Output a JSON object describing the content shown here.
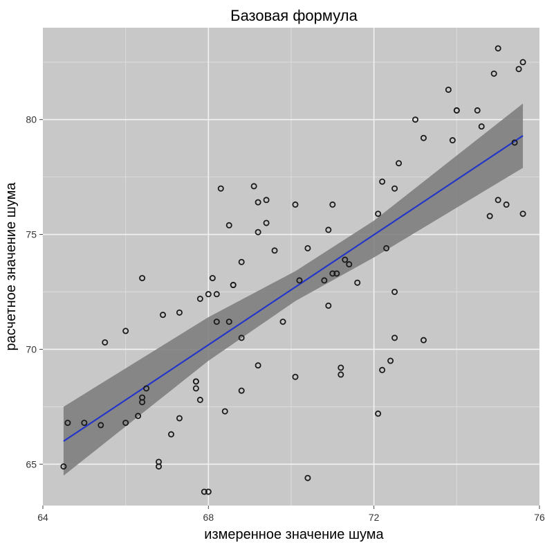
{
  "chart_data": {
    "type": "scatter",
    "title": "Базовая формула",
    "xlabel": "измеренное значение шума",
    "ylabel": "расчетное значение шума",
    "xlim": [
      64,
      76
    ],
    "ylim": [
      63.2,
      84.0
    ],
    "xticks": [
      64,
      68,
      72,
      76
    ],
    "yticks": [
      65,
      70,
      75,
      80
    ],
    "grid": true,
    "colors": {
      "panel": "#c8c8c8",
      "grid_major": "#f2f2f2",
      "grid_minor": "#dcdcdc",
      "points": "#1a1a1a",
      "fit_line": "#2436c8",
      "confidence_band": "#7a7a7a"
    },
    "points": [
      {
        "x": 64.5,
        "y": 64.9
      },
      {
        "x": 64.6,
        "y": 66.8
      },
      {
        "x": 65.0,
        "y": 66.8
      },
      {
        "x": 65.4,
        "y": 66.7
      },
      {
        "x": 65.5,
        "y": 70.3
      },
      {
        "x": 66.0,
        "y": 70.8
      },
      {
        "x": 66.0,
        "y": 66.8
      },
      {
        "x": 66.3,
        "y": 67.1
      },
      {
        "x": 66.4,
        "y": 67.7
      },
      {
        "x": 66.4,
        "y": 67.9
      },
      {
        "x": 66.5,
        "y": 68.3
      },
      {
        "x": 66.4,
        "y": 73.1
      },
      {
        "x": 66.8,
        "y": 65.1
      },
      {
        "x": 66.8,
        "y": 64.9
      },
      {
        "x": 66.9,
        "y": 71.5
      },
      {
        "x": 67.1,
        "y": 66.3
      },
      {
        "x": 67.3,
        "y": 71.6
      },
      {
        "x": 67.3,
        "y": 67.0
      },
      {
        "x": 67.7,
        "y": 68.6
      },
      {
        "x": 67.7,
        "y": 68.3
      },
      {
        "x": 67.7,
        "y": 68.6
      },
      {
        "x": 67.8,
        "y": 67.8
      },
      {
        "x": 67.8,
        "y": 72.2
      },
      {
        "x": 67.9,
        "y": 63.8
      },
      {
        "x": 68.0,
        "y": 63.8
      },
      {
        "x": 68.0,
        "y": 72.4
      },
      {
        "x": 68.1,
        "y": 73.1
      },
      {
        "x": 68.2,
        "y": 71.2
      },
      {
        "x": 68.2,
        "y": 72.4
      },
      {
        "x": 68.3,
        "y": 77.0
      },
      {
        "x": 68.4,
        "y": 67.3
      },
      {
        "x": 68.5,
        "y": 75.4
      },
      {
        "x": 68.5,
        "y": 71.2
      },
      {
        "x": 68.6,
        "y": 72.8
      },
      {
        "x": 68.6,
        "y": 72.8
      },
      {
        "x": 68.8,
        "y": 70.5
      },
      {
        "x": 68.8,
        "y": 73.8
      },
      {
        "x": 68.8,
        "y": 68.2
      },
      {
        "x": 69.1,
        "y": 77.1
      },
      {
        "x": 69.2,
        "y": 76.4
      },
      {
        "x": 69.2,
        "y": 75.1
      },
      {
        "x": 69.2,
        "y": 69.3
      },
      {
        "x": 69.4,
        "y": 76.5
      },
      {
        "x": 69.4,
        "y": 75.5
      },
      {
        "x": 69.6,
        "y": 74.3
      },
      {
        "x": 69.8,
        "y": 71.2
      },
      {
        "x": 70.1,
        "y": 76.3
      },
      {
        "x": 70.1,
        "y": 68.8
      },
      {
        "x": 70.2,
        "y": 73.0
      },
      {
        "x": 70.4,
        "y": 74.4
      },
      {
        "x": 70.4,
        "y": 64.4
      },
      {
        "x": 70.8,
        "y": 73.0
      },
      {
        "x": 70.9,
        "y": 75.2
      },
      {
        "x": 70.9,
        "y": 71.9
      },
      {
        "x": 71.0,
        "y": 76.3
      },
      {
        "x": 71.0,
        "y": 73.3
      },
      {
        "x": 71.1,
        "y": 73.3
      },
      {
        "x": 71.2,
        "y": 69.2
      },
      {
        "x": 71.2,
        "y": 68.9
      },
      {
        "x": 71.3,
        "y": 73.9
      },
      {
        "x": 71.4,
        "y": 73.7
      },
      {
        "x": 71.6,
        "y": 72.9
      },
      {
        "x": 72.1,
        "y": 75.9
      },
      {
        "x": 72.1,
        "y": 67.2
      },
      {
        "x": 72.2,
        "y": 77.3
      },
      {
        "x": 72.2,
        "y": 69.1
      },
      {
        "x": 72.3,
        "y": 74.4
      },
      {
        "x": 72.4,
        "y": 69.5
      },
      {
        "x": 72.5,
        "y": 77.0
      },
      {
        "x": 72.5,
        "y": 72.5
      },
      {
        "x": 72.5,
        "y": 70.5
      },
      {
        "x": 72.6,
        "y": 78.1
      },
      {
        "x": 73.0,
        "y": 80.0
      },
      {
        "x": 73.2,
        "y": 79.2
      },
      {
        "x": 73.2,
        "y": 70.4
      },
      {
        "x": 73.8,
        "y": 81.3
      },
      {
        "x": 73.9,
        "y": 79.1
      },
      {
        "x": 74.0,
        "y": 80.4
      },
      {
        "x": 74.0,
        "y": 80.4
      },
      {
        "x": 74.5,
        "y": 80.4
      },
      {
        "x": 74.6,
        "y": 79.7
      },
      {
        "x": 74.8,
        "y": 75.8
      },
      {
        "x": 74.9,
        "y": 82.0
      },
      {
        "x": 75.0,
        "y": 83.1
      },
      {
        "x": 75.0,
        "y": 76.5
      },
      {
        "x": 75.2,
        "y": 76.3
      },
      {
        "x": 75.4,
        "y": 79.0
      },
      {
        "x": 75.5,
        "y": 82.2
      },
      {
        "x": 75.6,
        "y": 82.5
      },
      {
        "x": 75.6,
        "y": 75.9
      }
    ],
    "fit_line": {
      "x": [
        64.5,
        75.6
      ],
      "y": [
        66.0,
        79.3
      ]
    },
    "confidence_band": {
      "x": [
        64.5,
        68.0,
        70.1,
        72.0,
        75.6
      ],
      "upper": [
        67.5,
        71.4,
        73.4,
        75.6,
        80.7
      ],
      "lower": [
        64.5,
        69.5,
        72.1,
        74.0,
        77.9
      ]
    }
  }
}
